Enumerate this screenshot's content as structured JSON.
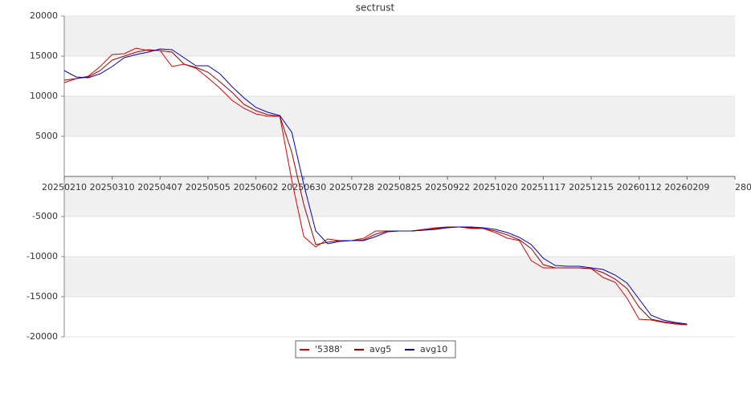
{
  "chart_data": {
    "type": "line",
    "title": "sectrust",
    "x": [
      "20250210",
      "20250217",
      "20250224",
      "20250303",
      "20250310",
      "20250317",
      "20250324",
      "20250331",
      "20250407",
      "20250414",
      "20250421",
      "20250428",
      "20250505",
      "20250512",
      "20250519",
      "20250526",
      "20250602",
      "20250609",
      "20250616",
      "20250623",
      "20250630",
      "20250707",
      "20250714",
      "20250721",
      "20250728",
      "20250804",
      "20250811",
      "20250818",
      "20250825",
      "20250901",
      "20250908",
      "20250915",
      "20250922",
      "20250929",
      "20251006",
      "20251013",
      "20251020",
      "20251027",
      "20251103",
      "20251110",
      "20251117",
      "20251124",
      "20251201",
      "20251208",
      "20251215",
      "20251222",
      "20251229",
      "20260105",
      "20260112",
      "20260119",
      "20260126",
      "20260202",
      "20260209"
    ],
    "series": [
      {
        "name": "'5388'",
        "color": "#e00000",
        "values": [
          11700,
          12200,
          12500,
          13700,
          15200,
          15300,
          16000,
          15700,
          15700,
          13700,
          14000,
          13500,
          12300,
          11000,
          9500,
          8500,
          7800,
          7500,
          7500,
          -500,
          -7500,
          -8800,
          -7800,
          -8000,
          -8000,
          -7700,
          -6800,
          -6800,
          -6800,
          -6800,
          -6600,
          -6400,
          -6300,
          -6300,
          -6500,
          -6500,
          -7000,
          -7700,
          -8000,
          -10500,
          -11400,
          -11400,
          -11400,
          -11400,
          -11500,
          -12600,
          -13200,
          -15200,
          -17800,
          -17900,
          -18200,
          -18400,
          -18500
        ]
      },
      {
        "name": "avg5",
        "color": "#a00000",
        "values": [
          12000,
          12200,
          12400,
          13200,
          14500,
          15000,
          15500,
          15800,
          15700,
          15500,
          14000,
          13600,
          13000,
          11800,
          10500,
          9000,
          8200,
          7700,
          7500,
          3000,
          -3500,
          -8500,
          -8200,
          -8000,
          -8000,
          -7900,
          -7200,
          -6800,
          -6800,
          -6800,
          -6700,
          -6500,
          -6300,
          -6300,
          -6400,
          -6500,
          -6800,
          -7300,
          -7900,
          -9000,
          -11000,
          -11400,
          -11400,
          -11400,
          -11500,
          -12000,
          -12800,
          -14000,
          -16300,
          -17800,
          -18100,
          -18300,
          -18500
        ]
      },
      {
        "name": "avg10",
        "color": "#0000cc",
        "values": [
          13200,
          12400,
          12300,
          12800,
          13700,
          14800,
          15200,
          15500,
          15900,
          15800,
          14800,
          13800,
          13800,
          12800,
          11200,
          9800,
          8600,
          8000,
          7600,
          5500,
          -1000,
          -6800,
          -8400,
          -8100,
          -8000,
          -8000,
          -7500,
          -6900,
          -6800,
          -6800,
          -6700,
          -6600,
          -6400,
          -6300,
          -6300,
          -6400,
          -6600,
          -7000,
          -7600,
          -8500,
          -10200,
          -11100,
          -11200,
          -11200,
          -11400,
          -11600,
          -12300,
          -13300,
          -15300,
          -17300,
          -17900,
          -18200,
          -18400
        ]
      }
    ],
    "xlim": [
      "20250210",
      "20260309"
    ],
    "xticks": [
      "20250210",
      "20250310",
      "20250407",
      "20250505",
      "20250602",
      "20250630",
      "20250728",
      "20250825",
      "20250922",
      "20251020",
      "20251117",
      "20251215",
      "20260112",
      "20260209",
      {
        "value": "20260309",
        "label": "280"
      }
    ],
    "ylim": [
      -20000,
      20000
    ],
    "yticks": [
      20000,
      15000,
      10000,
      5000,
      -5000,
      -10000,
      -15000,
      -20000
    ],
    "grid": true
  }
}
